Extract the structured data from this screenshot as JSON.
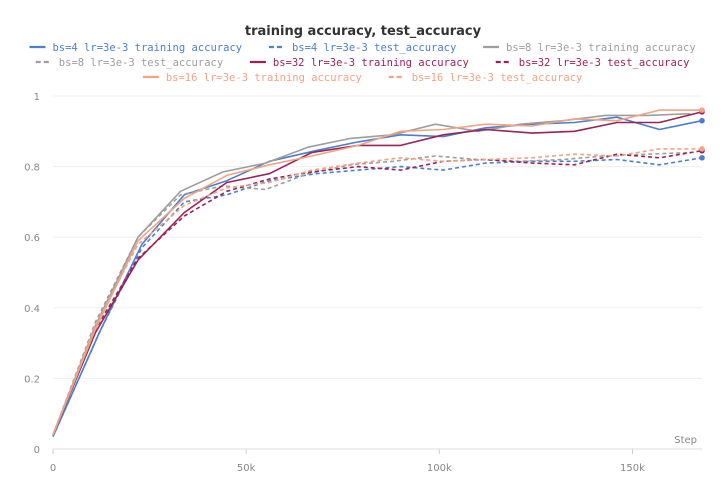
{
  "chart_data": {
    "type": "line",
    "title": "training accuracy, test_accuracy",
    "xlabel": "Step",
    "ylabel": "",
    "xlim": [
      0,
      168000
    ],
    "ylim": [
      0,
      1
    ],
    "x_ticks": [
      {
        "value": 0,
        "label": "0"
      },
      {
        "value": 50000,
        "label": "50k"
      },
      {
        "value": 100000,
        "label": "100k"
      },
      {
        "value": 150000,
        "label": "150k"
      }
    ],
    "y_ticks": [
      {
        "value": 0,
        "label": "0"
      },
      {
        "value": 0.2,
        "label": "0.2"
      },
      {
        "value": 0.4,
        "label": "0.4"
      },
      {
        "value": 0.6,
        "label": "0.6"
      },
      {
        "value": 0.8,
        "label": "0.8"
      },
      {
        "value": 1,
        "label": "1"
      }
    ],
    "grid": "horizontal",
    "legend_position": "top",
    "series": [
      {
        "name": "bs=4 lr=3e-3 training accuracy",
        "color": "#4a7fd0",
        "dash": "solid",
        "end_marker": true,
        "x": [
          0,
          12000,
          23000,
          34000,
          45000,
          56000,
          68000,
          79000,
          90000,
          101000,
          112000,
          124000,
          135000,
          146000,
          157000,
          168000
        ],
        "y": [
          0.035,
          0.33,
          0.58,
          0.72,
          0.76,
          0.815,
          0.845,
          0.87,
          0.89,
          0.885,
          0.91,
          0.92,
          0.925,
          0.94,
          0.905,
          0.93
        ]
      },
      {
        "name": "bs=4 lr=3e-3 test_accuracy",
        "color": "#4a7fd0",
        "dash": "dashed",
        "end_marker": true,
        "x": [
          0,
          12000,
          23000,
          34000,
          45000,
          56000,
          68000,
          79000,
          90000,
          101000,
          112000,
          124000,
          135000,
          146000,
          157000,
          168000
        ],
        "y": [
          0.035,
          0.33,
          0.57,
          0.7,
          0.72,
          0.76,
          0.78,
          0.79,
          0.8,
          0.79,
          0.81,
          0.815,
          0.815,
          0.82,
          0.805,
          0.825
        ]
      },
      {
        "name": "bs=8 lr=3e-3 training accuracy",
        "color": "#9e9e9e",
        "dash": "solid",
        "end_marker": false,
        "x": [
          0,
          11000,
          22000,
          33000,
          44000,
          55000,
          66000,
          77000,
          88000,
          99000,
          110000,
          121000,
          132000,
          143000,
          154000,
          165000
        ],
        "y": [
          0.04,
          0.35,
          0.6,
          0.73,
          0.785,
          0.81,
          0.855,
          0.88,
          0.89,
          0.92,
          0.9,
          0.92,
          0.93,
          0.945,
          0.945,
          0.95
        ]
      },
      {
        "name": "bs=8 lr=3e-3 test_accuracy",
        "color": "#9e9e9e",
        "dash": "dashed",
        "end_marker": false,
        "x": [
          0,
          11000,
          22000,
          33000,
          44000,
          55000,
          66000,
          77000,
          88000,
          99000,
          110000,
          121000,
          132000,
          143000,
          154000,
          165000
        ],
        "y": [
          0.04,
          0.36,
          0.6,
          0.72,
          0.745,
          0.735,
          0.78,
          0.805,
          0.815,
          0.83,
          0.82,
          0.815,
          0.82,
          0.83,
          0.835,
          0.84
        ]
      },
      {
        "name": "bs=32 lr=3e-3 training accuracy",
        "color": "#9b2257",
        "dash": "solid",
        "end_marker": true,
        "x": [
          0,
          11000,
          22000,
          34000,
          45000,
          56000,
          67000,
          79000,
          90000,
          101000,
          112000,
          124000,
          135000,
          146000,
          157000,
          168000
        ],
        "y": [
          0.04,
          0.33,
          0.535,
          0.67,
          0.755,
          0.78,
          0.84,
          0.86,
          0.86,
          0.89,
          0.905,
          0.895,
          0.9,
          0.925,
          0.925,
          0.955
        ]
      },
      {
        "name": "bs=32 lr=3e-3 test_accuracy",
        "color": "#9b2257",
        "dash": "dashed",
        "end_marker": true,
        "x": [
          0,
          11000,
          22000,
          34000,
          45000,
          56000,
          67000,
          79000,
          90000,
          101000,
          112000,
          124000,
          135000,
          146000,
          157000,
          168000
        ],
        "y": [
          0.04,
          0.34,
          0.54,
          0.66,
          0.73,
          0.765,
          0.785,
          0.8,
          0.79,
          0.815,
          0.82,
          0.81,
          0.805,
          0.835,
          0.825,
          0.845
        ]
      },
      {
        "name": "bs=16 lr=3e-3 training accuracy",
        "color": "#f0a484",
        "dash": "solid",
        "end_marker": true,
        "x": [
          0,
          11000,
          22000,
          34000,
          45000,
          56000,
          67000,
          79000,
          90000,
          101000,
          112000,
          124000,
          135000,
          146000,
          157000,
          168000
        ],
        "y": [
          0.04,
          0.34,
          0.59,
          0.71,
          0.775,
          0.805,
          0.83,
          0.86,
          0.9,
          0.905,
          0.92,
          0.915,
          0.935,
          0.93,
          0.96,
          0.96
        ]
      },
      {
        "name": "bs=16 lr=3e-3 test_accuracy",
        "color": "#f0a484",
        "dash": "dashed",
        "end_marker": true,
        "x": [
          0,
          11000,
          22000,
          34000,
          45000,
          56000,
          67000,
          79000,
          90000,
          101000,
          112000,
          124000,
          135000,
          146000,
          157000,
          168000
        ],
        "y": [
          0.04,
          0.35,
          0.58,
          0.69,
          0.74,
          0.755,
          0.79,
          0.81,
          0.825,
          0.815,
          0.82,
          0.825,
          0.835,
          0.83,
          0.85,
          0.85
        ]
      }
    ]
  }
}
